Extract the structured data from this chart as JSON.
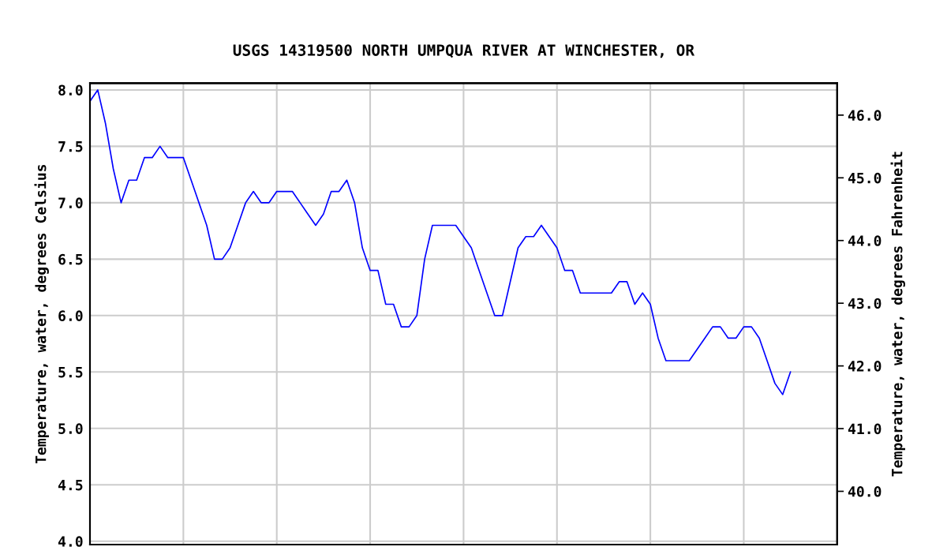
{
  "chart_data": {
    "type": "line",
    "title": "USGS 14319500 NORTH UMPQUA RIVER AT WINCHESTER, OR",
    "ylabel": "Temperature, water, degrees Celsius",
    "y2label": "Temperature, water, degrees Fahrenheit",
    "categories": [
      null,
      null,
      null,
      null,
      null,
      null,
      null,
      null,
      null,
      null,
      null,
      null,
      null,
      null,
      null,
      null,
      null,
      null,
      null,
      null,
      null,
      null,
      null,
      null,
      null,
      null,
      null,
      null,
      null,
      null,
      null,
      null,
      null,
      null,
      null,
      null,
      null,
      null,
      null,
      null,
      null,
      null,
      null,
      null,
      null,
      null,
      null,
      null,
      null,
      null,
      null,
      null,
      null,
      null,
      null,
      null,
      null,
      null,
      null,
      null,
      null,
      null,
      null,
      null,
      null,
      null,
      null,
      null,
      null,
      null,
      null,
      null,
      null,
      null,
      null,
      null,
      null,
      null,
      null,
      null,
      null,
      null,
      null,
      null,
      null,
      null,
      null,
      null,
      null,
      null,
      null,
      null,
      null,
      null,
      null,
      null,
      null
    ],
    "ylim": [
      3.97,
      8.06
    ],
    "yticks": [
      {
        "value": 4,
        "label": "4.0"
      },
      {
        "value": 4.5,
        "label": "4.5"
      },
      {
        "value": 5,
        "label": "5.0"
      },
      {
        "value": 5.5,
        "label": "5.5"
      },
      {
        "value": 6,
        "label": "6.0"
      },
      {
        "value": 6.5,
        "label": "6.5"
      },
      {
        "value": 7,
        "label": "7.0"
      },
      {
        "value": 7.5,
        "label": "7.5"
      },
      {
        "value": 8,
        "label": "8.0"
      }
    ],
    "y2lim": [
      39.15,
      46.51
    ],
    "y2ticks": [
      {
        "value": 40,
        "label": "40.0"
      },
      {
        "value": 41,
        "label": "41.0"
      },
      {
        "value": 42,
        "label": "42.0"
      },
      {
        "value": 43,
        "label": "43.0"
      },
      {
        "value": 44,
        "label": "44.0"
      },
      {
        "value": 45,
        "label": "45.0"
      },
      {
        "value": 46,
        "label": "46.0"
      }
    ],
    "grid": true,
    "legend": false,
    "marker": "none",
    "line_style": "solid",
    "series": [
      {
        "color": "#0000ff",
        "values": [
          7.9,
          8.0,
          7.7,
          7.3,
          7.0,
          7.2,
          7.2,
          7.4,
          7.4,
          7.5,
          7.4,
          7.4,
          7.4,
          7.2,
          7.0,
          6.8,
          6.5,
          6.5,
          6.6,
          6.8,
          7.0,
          7.1,
          7.0,
          7.0,
          7.1,
          7.1,
          7.1,
          7.0,
          6.9,
          6.8,
          6.9,
          7.1,
          7.1,
          7.2,
          7.0,
          6.6,
          6.4,
          6.4,
          6.1,
          6.1,
          5.9,
          5.9,
          6.0,
          6.5,
          6.8,
          6.8,
          6.8,
          6.8,
          6.7,
          6.6,
          6.4,
          6.2,
          6.0,
          6.0,
          6.3,
          6.6,
          6.7,
          6.7,
          6.8,
          6.7,
          6.6,
          6.4,
          6.4,
          6.2,
          6.2,
          6.2,
          6.2,
          6.2,
          6.3,
          6.3,
          6.1,
          6.2,
          6.1,
          5.8,
          5.6,
          5.6,
          5.6,
          5.6,
          5.7,
          5.8,
          5.9,
          5.9,
          5.8,
          5.8,
          5.9,
          5.9,
          5.8,
          5.6,
          5.4,
          5.3,
          5.5,
          null,
          null,
          null,
          null,
          null,
          null
        ]
      }
    ]
  }
}
